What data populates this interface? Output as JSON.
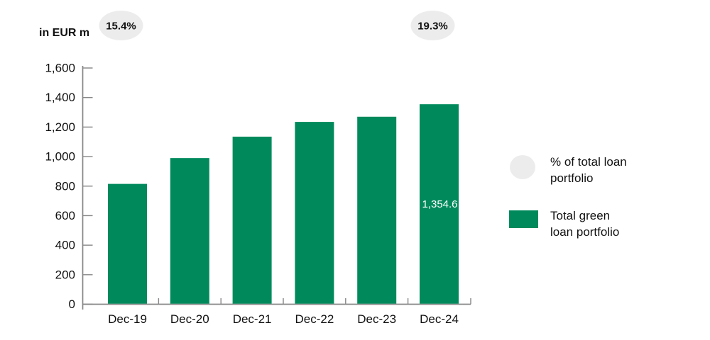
{
  "colors": {
    "bar": "#008a5c",
    "bubble": "#ececec",
    "axis": "#868686",
    "text": "#111111",
    "bar_label": "#ffffff",
    "background": "#ffffff"
  },
  "legend": {
    "items": [
      {
        "swatch": "ellipse",
        "lines": [
          "% of total loan",
          "portfolio"
        ]
      },
      {
        "swatch": "rect",
        "lines": [
          "Total green",
          "loan portfolio"
        ]
      }
    ]
  },
  "chart_data": {
    "type": "bar",
    "title": "",
    "unit_label": "in EUR m",
    "categories": [
      "Dec-19",
      "Dec-20",
      "Dec-21",
      "Dec-22",
      "Dec-23",
      "Dec-24"
    ],
    "values": [
      815,
      990,
      1135,
      1235,
      1270,
      1354.6
    ],
    "data_labels": [
      null,
      null,
      null,
      null,
      null,
      "1,354.6"
    ],
    "pct_of_total_loan_portfolio": [
      {
        "category": "Dec-19",
        "label": "15.4%"
      },
      {
        "category": "Dec-24",
        "label": "19.3%"
      }
    ],
    "ylim": [
      0,
      1600
    ],
    "ytick_step": 200,
    "ytick_labels": [
      "0",
      "200",
      "400",
      "600",
      "800",
      "1,000",
      "1,200",
      "1,400",
      "1,600"
    ],
    "grid": false,
    "legend_position": "right"
  }
}
